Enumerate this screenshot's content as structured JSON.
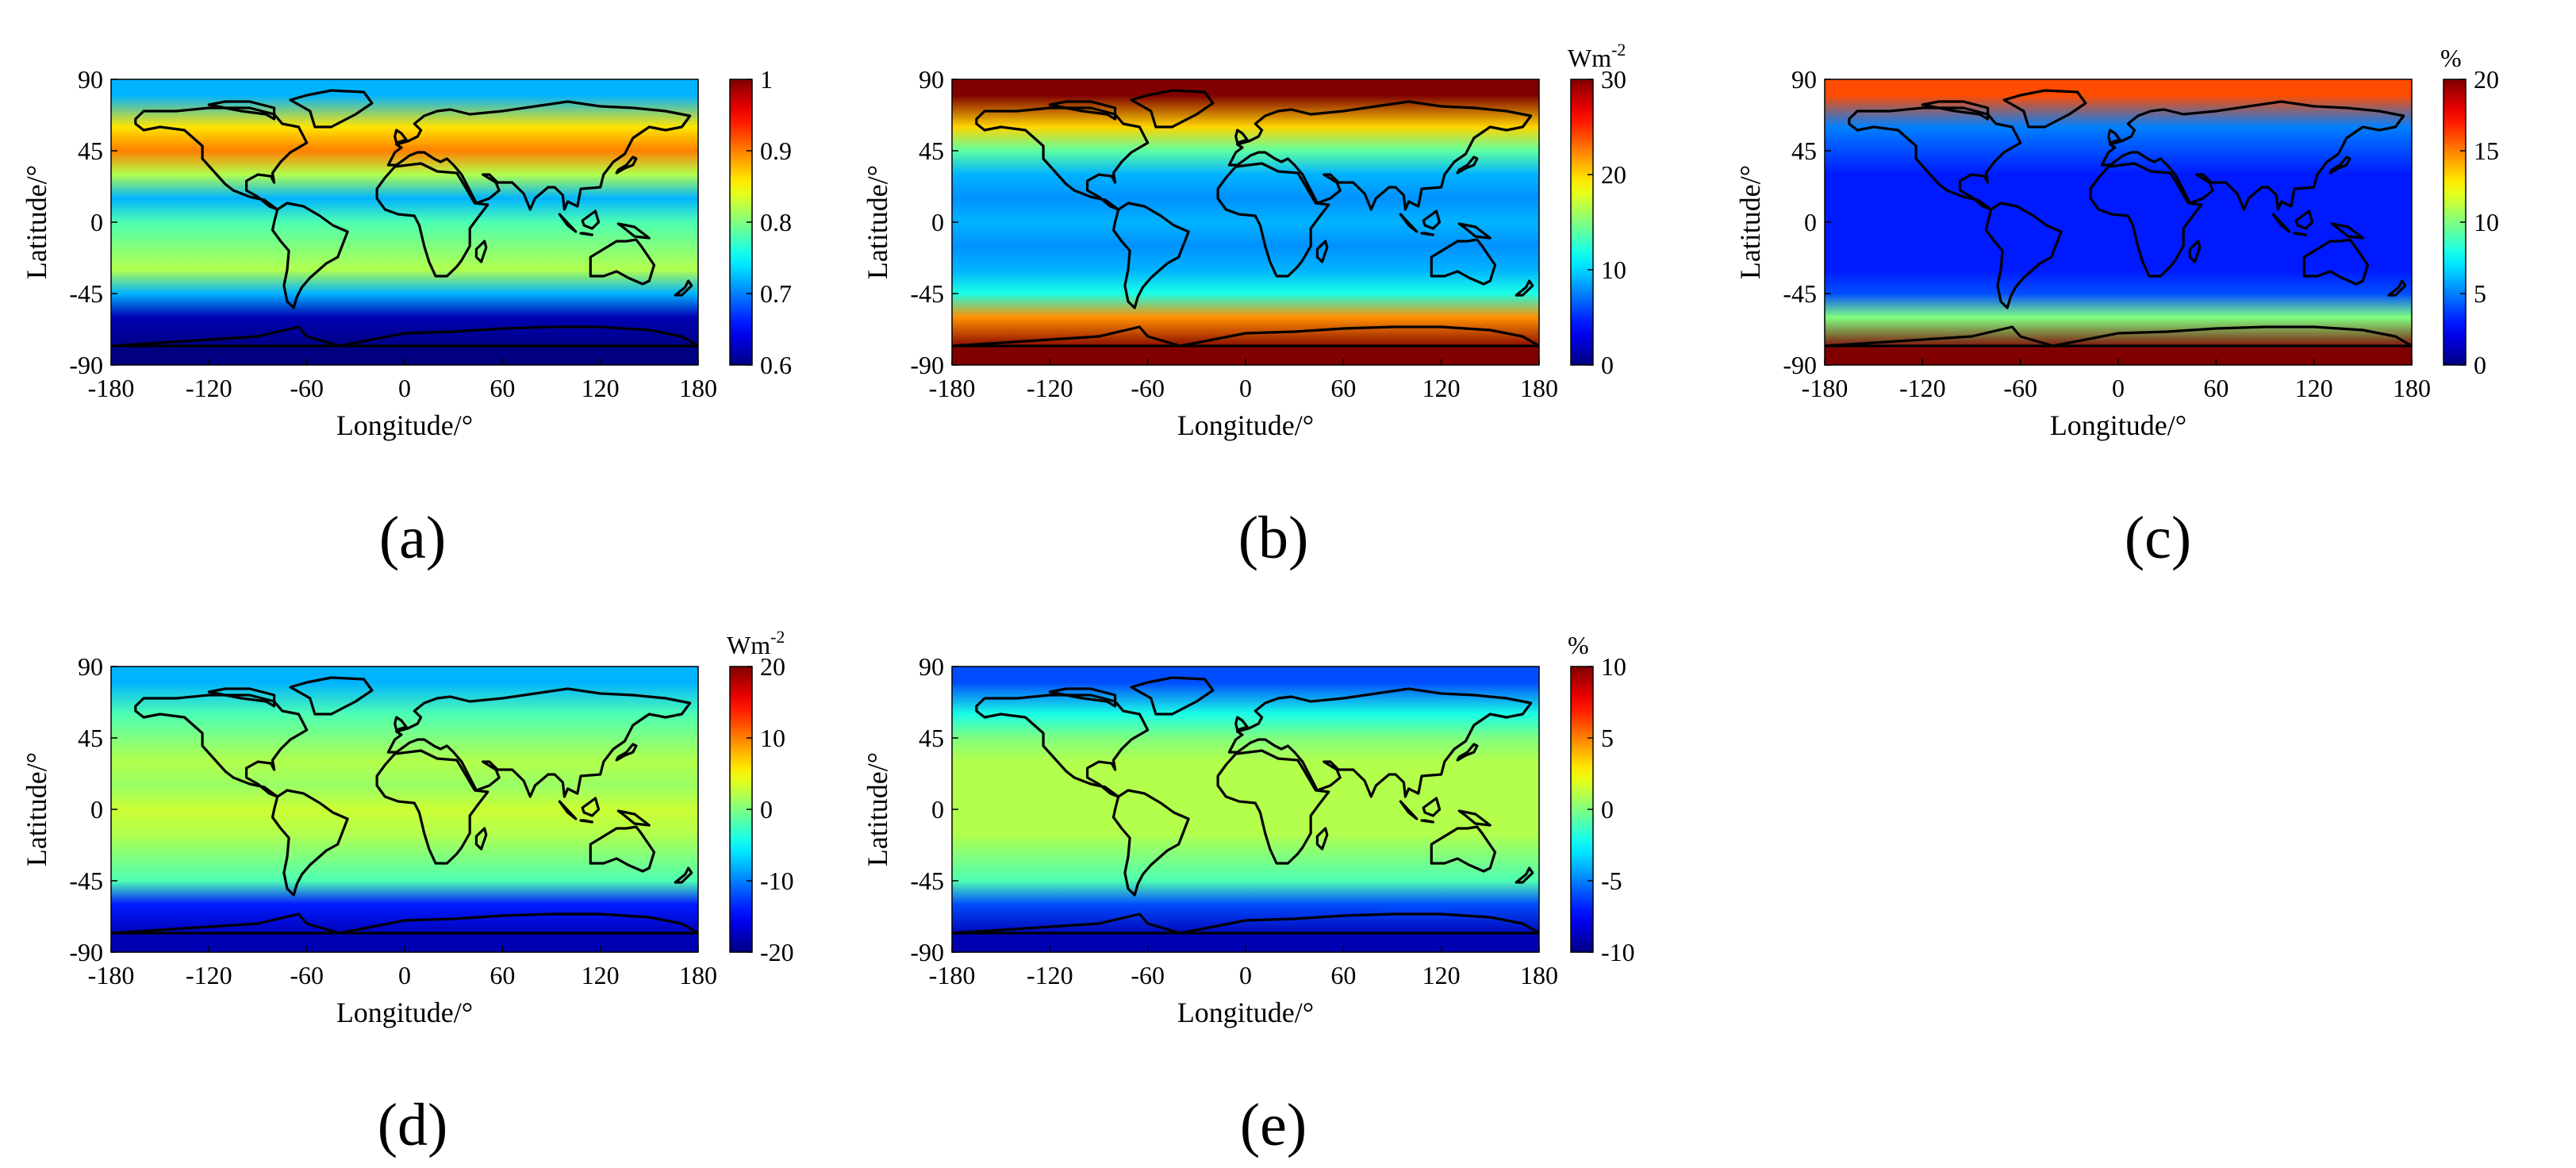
{
  "chart_data": [
    {
      "type": "heatmap",
      "panel_label": "(a)",
      "title": "",
      "xlabel": "Longitude/°",
      "ylabel": "Latitude/°",
      "x_ticks": [
        "-180",
        "-120",
        "-60",
        "0",
        "60",
        "120",
        "180"
      ],
      "y_ticks": [
        "90",
        "45",
        "0",
        "-45",
        "-90"
      ],
      "xlim": [
        -180,
        180
      ],
      "ylim": [
        -90,
        90
      ],
      "colorbar": {
        "unit": "",
        "range": [
          0.6,
          1
        ],
        "ticks": [
          "1",
          "0.9",
          "0.8",
          "0.7",
          "0.6"
        ]
      },
      "colormap": "jet",
      "zonal_mean_values": [
        {
          "lat": 80,
          "value": 0.72
        },
        {
          "lat": 60,
          "value": 0.86
        },
        {
          "lat": 45,
          "value": 0.9
        },
        {
          "lat": 30,
          "value": 0.82
        },
        {
          "lat": 15,
          "value": 0.72
        },
        {
          "lat": 0,
          "value": 0.78
        },
        {
          "lat": -15,
          "value": 0.8
        },
        {
          "lat": -30,
          "value": 0.82
        },
        {
          "lat": -45,
          "value": 0.72
        },
        {
          "lat": -60,
          "value": 0.62
        },
        {
          "lat": -80,
          "value": 0.6
        }
      ]
    },
    {
      "type": "heatmap",
      "panel_label": "(b)",
      "title": "",
      "xlabel": "Longitude/°",
      "ylabel": "Latitude/°",
      "x_ticks": [
        "-180",
        "-120",
        "-60",
        "0",
        "60",
        "120",
        "180"
      ],
      "y_ticks": [
        "90",
        "45",
        "0",
        "-45",
        "-90"
      ],
      "xlim": [
        -180,
        180
      ],
      "ylim": [
        -90,
        90
      ],
      "colorbar": {
        "unit": "Wm-2",
        "unit_base": "Wm",
        "unit_exp": "-2",
        "range": [
          0,
          30
        ],
        "ticks": [
          "30",
          "20",
          "10",
          "0"
        ]
      },
      "colormap": "jet",
      "zonal_mean_values": [
        {
          "lat": 80,
          "value": 30
        },
        {
          "lat": 60,
          "value": 20
        },
        {
          "lat": 45,
          "value": 14
        },
        {
          "lat": 30,
          "value": 9
        },
        {
          "lat": 15,
          "value": 8
        },
        {
          "lat": 0,
          "value": 9
        },
        {
          "lat": -15,
          "value": 8
        },
        {
          "lat": -30,
          "value": 9
        },
        {
          "lat": -45,
          "value": 12
        },
        {
          "lat": -60,
          "value": 22
        },
        {
          "lat": -80,
          "value": 30
        }
      ]
    },
    {
      "type": "heatmap",
      "panel_label": "(c)",
      "title": "",
      "xlabel": "Longitude/°",
      "ylabel": "Latitude/°",
      "x_ticks": [
        "-180",
        "-120",
        "-60",
        "0",
        "60",
        "120",
        "180"
      ],
      "y_ticks": [
        "90",
        "45",
        "0",
        "-45",
        "-90"
      ],
      "xlim": [
        -180,
        180
      ],
      "ylim": [
        -90,
        90
      ],
      "colorbar": {
        "unit": "%",
        "range": [
          0,
          20
        ],
        "ticks": [
          "20",
          "15",
          "10",
          "5",
          "0"
        ]
      },
      "colormap": "jet",
      "zonal_mean_values": [
        {
          "lat": 80,
          "value": 16
        },
        {
          "lat": 60,
          "value": 5
        },
        {
          "lat": 45,
          "value": 4
        },
        {
          "lat": 30,
          "value": 3
        },
        {
          "lat": 15,
          "value": 3
        },
        {
          "lat": 0,
          "value": 3
        },
        {
          "lat": -15,
          "value": 3
        },
        {
          "lat": -30,
          "value": 3
        },
        {
          "lat": -45,
          "value": 4
        },
        {
          "lat": -60,
          "value": 10
        },
        {
          "lat": -80,
          "value": 20
        }
      ]
    },
    {
      "type": "heatmap",
      "panel_label": "(d)",
      "title": "",
      "xlabel": "Longitude/°",
      "ylabel": "Latitude/°",
      "x_ticks": [
        "-180",
        "-120",
        "-60",
        "0",
        "60",
        "120",
        "180"
      ],
      "y_ticks": [
        "90",
        "45",
        "0",
        "-45",
        "-90"
      ],
      "xlim": [
        -180,
        180
      ],
      "ylim": [
        -90,
        90
      ],
      "colorbar": {
        "unit": "Wm-2",
        "unit_base": "Wm",
        "unit_exp": "-2",
        "range": [
          -20,
          20
        ],
        "ticks": [
          "20",
          "10",
          "0",
          "-10",
          "-20"
        ]
      },
      "colormap": "jet",
      "zonal_mean_values": [
        {
          "lat": 80,
          "value": -8
        },
        {
          "lat": 60,
          "value": -2
        },
        {
          "lat": 45,
          "value": 0
        },
        {
          "lat": 30,
          "value": 2
        },
        {
          "lat": 15,
          "value": 1
        },
        {
          "lat": 0,
          "value": 3
        },
        {
          "lat": -15,
          "value": 2
        },
        {
          "lat": -30,
          "value": 0
        },
        {
          "lat": -45,
          "value": -2
        },
        {
          "lat": -60,
          "value": -14
        },
        {
          "lat": -80,
          "value": -18
        }
      ]
    },
    {
      "type": "heatmap",
      "panel_label": "(e)",
      "title": "",
      "xlabel": "Longitude/°",
      "ylabel": "Latitude/°",
      "x_ticks": [
        "-180",
        "-120",
        "-60",
        "0",
        "60",
        "120",
        "180"
      ],
      "y_ticks": [
        "90",
        "45",
        "0",
        "-45",
        "-90"
      ],
      "xlim": [
        -180,
        180
      ],
      "ylim": [
        -90,
        90
      ],
      "colorbar": {
        "unit": "%",
        "range": [
          -10,
          10
        ],
        "ticks": [
          "10",
          "5",
          "0",
          "-5",
          "-10"
        ]
      },
      "colormap": "jet",
      "zonal_mean_values": [
        {
          "lat": 80,
          "value": -6
        },
        {
          "lat": 60,
          "value": -2
        },
        {
          "lat": 45,
          "value": 0
        },
        {
          "lat": 30,
          "value": 1
        },
        {
          "lat": 15,
          "value": 1
        },
        {
          "lat": 0,
          "value": 1
        },
        {
          "lat": -15,
          "value": 1
        },
        {
          "lat": -30,
          "value": 0
        },
        {
          "lat": -45,
          "value": -1
        },
        {
          "lat": -60,
          "value": -6
        },
        {
          "lat": -80,
          "value": -9
        }
      ]
    }
  ]
}
